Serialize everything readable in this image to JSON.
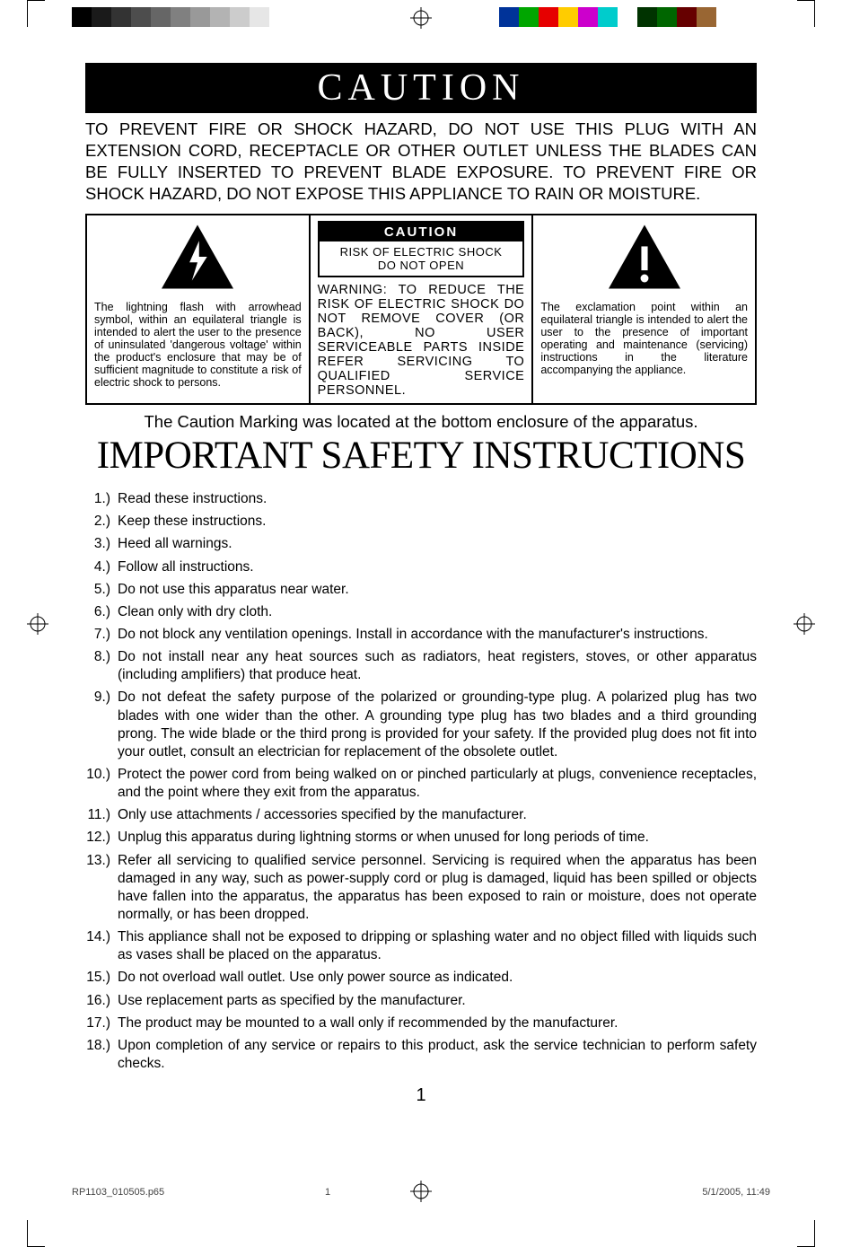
{
  "colorbar_left": [
    "#000000",
    "#1a1a1a",
    "#333333",
    "#4d4d4d",
    "#666666",
    "#808080",
    "#999999",
    "#b3b3b3",
    "#cccccc",
    "#e6e6e6",
    "#ffffff"
  ],
  "colorbar_right": [
    "#003399",
    "#00a600",
    "#e60000",
    "#ffcc00",
    "#cc00cc",
    "#00cccc",
    "#ffffff",
    "#003300",
    "#006600",
    "#660000",
    "#996633"
  ],
  "caution_title": "CAUTION",
  "intro_text": "TO PREVENT FIRE OR SHOCK HAZARD, DO NOT USE THIS PLUG WITH AN EXTENSION CORD, RECEPTACLE OR OTHER OUTLET UNLESS THE BLADES CAN BE FULLY INSERTED TO PREVENT BLADE EXPOSURE. TO PREVENT FIRE OR SHOCK HAZARD, DO NOT EXPOSE THIS APPLIANCE TO RAIN OR MOISTURE.",
  "left_box_text": "The lightning flash with arrowhead symbol, within an equilateral triangle is intended to alert the user to the presence of uninsulated 'dangerous voltage' within the product's enclosure that may be of sufficient magnitude to constitute a risk of electric shock to persons.",
  "mid_caution_label": "CAUTION",
  "mid_caution_line1": "RISK OF ELECTRIC SHOCK",
  "mid_caution_line2": "DO NOT OPEN",
  "mid_box_text": "WARNING: TO REDUCE THE RISK OF ELECTRIC SHOCK DO NOT REMOVE COVER (OR BACK), NO USER SERVICEABLE PARTS INSIDE REFER SERVICING TO QUALIFIED SERVICE PERSONNEL.",
  "right_box_text": "The exclamation point within an equilateral triangle is intended to alert the user to the presence of important operating and maintenance (servicing) instructions in the literature accompanying the appliance.",
  "enclosure_note": "The Caution Marking was located at the bottom enclosure of the apparatus.",
  "big_heading": "IMPORTANT SAFETY INSTRUCTIONS",
  "instructions": [
    {
      "n": "1.)",
      "t": "Read these instructions."
    },
    {
      "n": "2.)",
      "t": "Keep these instructions."
    },
    {
      "n": "3.)",
      "t": "Heed all warnings."
    },
    {
      "n": "4.)",
      "t": "Follow all instructions."
    },
    {
      "n": "5.)",
      "t": "Do not use this apparatus near water."
    },
    {
      "n": "6.)",
      "t": "Clean only with dry cloth."
    },
    {
      "n": "7.)",
      "t": "Do not block any ventilation openings. Install in accordance with the manufacturer's instructions."
    },
    {
      "n": "8.)",
      "t": "Do not install near any heat sources such as radiators, heat registers, stoves, or other apparatus (including amplifiers) that produce heat."
    },
    {
      "n": "9.)",
      "t": "Do not defeat the safety purpose of the polarized or grounding-type plug. A polarized plug has two blades with one wider than the other. A grounding type plug has two blades and a third grounding prong. The wide blade or the third prong is provided for your safety. If the provided plug does not fit into your outlet, consult an electrician for replacement of the obsolete outlet."
    },
    {
      "n": "10.)",
      "t": "Protect the power cord from being walked on or pinched particularly at plugs, convenience receptacles, and the point where they exit from the apparatus."
    },
    {
      "n": "11.)",
      "t": "Only use attachments / accessories specified by the manufacturer."
    },
    {
      "n": "12.)",
      "t": "Unplug this apparatus during lightning storms or when unused for long periods of time."
    },
    {
      "n": "13.)",
      "t": "Refer all servicing to qualified service personnel. Servicing is required when the apparatus has been damaged in any way, such as power-supply cord or plug is damaged, liquid has been spilled or objects have fallen into the apparatus, the apparatus has been exposed to rain or moisture, does not operate normally, or has been dropped."
    },
    {
      "n": "14.)",
      "t": "This appliance shall not be exposed to dripping or splashing water and no object filled with liquids such as vases shall be placed on the apparatus."
    },
    {
      "n": "15.)",
      "t": "Do not overload wall outlet. Use only power source as indicated."
    },
    {
      "n": "16.)",
      "t": "Use replacement parts as specified by the manufacturer."
    },
    {
      "n": "17.)",
      "t": "The product may be mounted to a wall only if recommended by the manufacturer."
    },
    {
      "n": "18.)",
      "t": "Upon completion of any service or repairs to this product, ask the service technician to perform safety checks."
    }
  ],
  "page_number": "1",
  "footer_file": "RP1103_010505.p65",
  "footer_page": "1",
  "footer_date": "5/1/2005, 11:49"
}
